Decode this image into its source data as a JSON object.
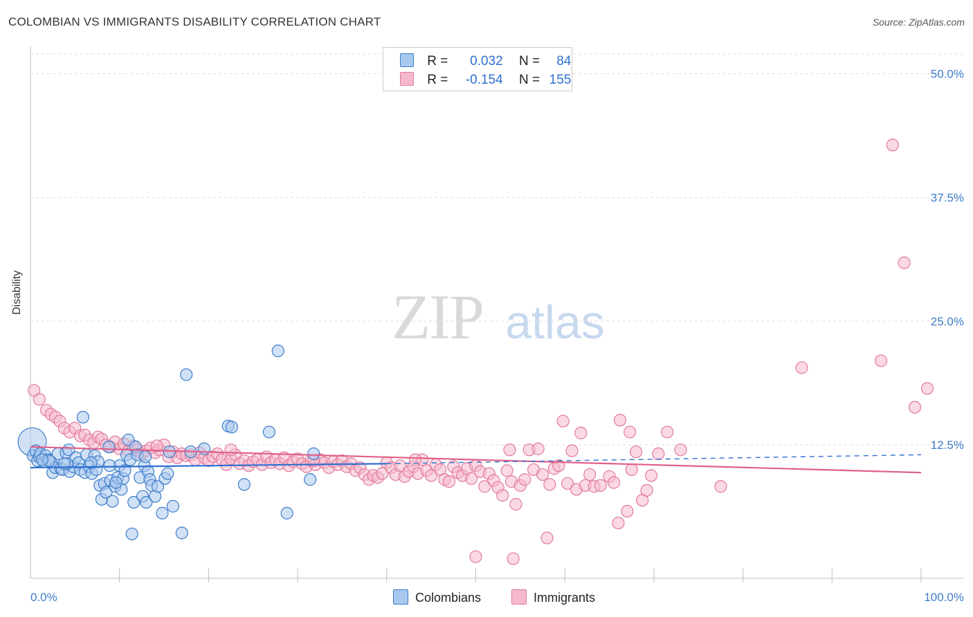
{
  "title": "COLOMBIAN VS IMMIGRANTS DISABILITY CORRELATION CHART",
  "source": "Source: ZipAtlas.com",
  "watermark": {
    "zip": "ZIP",
    "atlas": "atlas"
  },
  "legend": {
    "r_label": "R =",
    "n_label": "N =",
    "rows": [
      {
        "r": "0.032",
        "n": "84"
      },
      {
        "r": "-0.154",
        "n": "155"
      }
    ]
  },
  "colors": {
    "colombians_fill": "#a9c8ee",
    "colombians_stroke": "#3d7cc9",
    "colombians_line": "#2f6fd0",
    "immigrants_fill": "#f5b9cc",
    "immigrants_stroke": "#e07a9b",
    "immigrants_line": "#e0608a",
    "tick_label": "#3d7cc9",
    "grid": "#dddddd"
  },
  "chart_data": {
    "type": "scatter",
    "ylabel": "Disability",
    "xlabel": "",
    "x_tick_labels": [
      "0.0%",
      "100.0%"
    ],
    "y_tick_labels": [
      "12.5%",
      "25.0%",
      "37.5%",
      "50.0%"
    ],
    "y_ticks": [
      12.5,
      25.0,
      37.5,
      50.0
    ],
    "xlim": [
      0,
      100
    ],
    "ylim": [
      0,
      52
    ],
    "grid": true,
    "legend_position": "top-center",
    "series": [
      {
        "name": "Colombians",
        "r": 0.032,
        "n": 84,
        "trend": {
          "x": [
            0,
            40
          ],
          "y": [
            10.2,
            10.6
          ]
        },
        "trend_dashed": {
          "x": [
            40,
            100
          ],
          "y": [
            10.6,
            11.5
          ]
        },
        "points": [
          [
            0.2,
            12.8,
            2.4
          ],
          [
            0.3,
            11.4,
            1
          ],
          [
            0.6,
            11.9,
            1
          ],
          [
            0.8,
            10.9,
            1
          ],
          [
            1.0,
            11.3,
            1
          ],
          [
            1.1,
            11.6,
            1
          ],
          [
            1.5,
            10.8,
            1
          ],
          [
            1.7,
            11.4,
            1
          ],
          [
            2.0,
            11.0,
            1
          ],
          [
            2.3,
            10.8,
            1
          ],
          [
            2.5,
            9.7,
            1
          ],
          [
            2.8,
            10.2,
            1
          ],
          [
            3.1,
            11.6,
            1
          ],
          [
            3.4,
            10.1,
            1
          ],
          [
            3.6,
            10.0,
            1
          ],
          [
            4.0,
            11.7,
            1
          ],
          [
            4.3,
            12.0,
            1
          ],
          [
            4.4,
            9.8,
            1
          ],
          [
            4.8,
            10.3,
            1
          ],
          [
            5.1,
            11.2,
            1
          ],
          [
            5.4,
            10.7,
            1
          ],
          [
            5.6,
            10.0,
            1
          ],
          [
            5.9,
            15.3,
            1
          ],
          [
            6.1,
            9.7,
            1
          ],
          [
            6.3,
            11.5,
            1
          ],
          [
            6.6,
            10.3,
            1
          ],
          [
            6.9,
            9.6,
            1
          ],
          [
            7.2,
            11.4,
            1
          ],
          [
            7.4,
            10.0,
            1
          ],
          [
            7.6,
            10.8,
            1
          ],
          [
            7.8,
            8.4,
            1
          ],
          [
            8.0,
            7.0,
            1
          ],
          [
            8.3,
            8.6,
            1
          ],
          [
            8.5,
            7.7,
            1
          ],
          [
            8.8,
            12.3,
            1
          ],
          [
            9.0,
            8.9,
            1
          ],
          [
            9.2,
            6.8,
            1
          ],
          [
            9.5,
            8.3,
            1
          ],
          [
            9.8,
            9.2,
            1
          ],
          [
            10.0,
            10.4,
            1
          ],
          [
            10.2,
            8.0,
            1
          ],
          [
            10.4,
            9.1,
            1
          ],
          [
            10.6,
            9.9,
            1
          ],
          [
            10.8,
            11.5,
            1
          ],
          [
            11.0,
            13.0,
            1
          ],
          [
            11.2,
            11.0,
            1
          ],
          [
            11.4,
            3.5,
            1
          ],
          [
            11.6,
            6.7,
            1
          ],
          [
            11.8,
            12.3,
            1
          ],
          [
            12.0,
            11.5,
            1
          ],
          [
            12.3,
            9.2,
            1
          ],
          [
            12.6,
            7.3,
            1
          ],
          [
            12.8,
            10.4,
            1
          ],
          [
            13.0,
            6.7,
            1
          ],
          [
            13.2,
            9.8,
            1
          ],
          [
            13.4,
            9.0,
            1
          ],
          [
            13.6,
            8.4,
            1
          ],
          [
            14.0,
            7.3,
            1
          ],
          [
            14.3,
            8.3,
            1
          ],
          [
            14.8,
            5.6,
            1
          ],
          [
            15.1,
            9.1,
            1
          ],
          [
            15.4,
            9.6,
            1
          ],
          [
            15.6,
            11.8,
            1
          ],
          [
            16.0,
            6.3,
            1
          ],
          [
            17.0,
            3.6,
            1
          ],
          [
            17.5,
            19.6,
            1
          ],
          [
            18.0,
            11.8,
            1
          ],
          [
            19.5,
            12.1,
            1
          ],
          [
            22.2,
            14.4,
            1
          ],
          [
            22.6,
            14.3,
            1
          ],
          [
            24.0,
            8.5,
            1
          ],
          [
            26.8,
            13.8,
            1
          ],
          [
            27.8,
            22.0,
            1
          ],
          [
            28.8,
            5.6,
            1
          ],
          [
            31.8,
            11.6,
            1
          ],
          [
            31.4,
            9.0,
            1
          ],
          [
            9.6,
            8.7,
            1
          ],
          [
            4.1,
            10.6,
            1
          ],
          [
            2.1,
            10.9,
            1
          ],
          [
            3.8,
            10.6,
            1
          ],
          [
            6.8,
            10.7,
            1
          ],
          [
            1.3,
            11.0,
            1
          ],
          [
            12.9,
            11.3,
            1
          ],
          [
            8.9,
            10.4,
            1
          ]
        ]
      },
      {
        "name": "Immigrants",
        "r": -0.154,
        "n": 155,
        "trend": {
          "x": [
            0,
            100
          ],
          "y": [
            12.3,
            9.7
          ]
        },
        "points": [
          [
            0.4,
            18.0,
            1
          ],
          [
            1.0,
            17.1,
            1
          ],
          [
            1.8,
            16.0,
            1
          ],
          [
            2.3,
            15.6,
            1
          ],
          [
            2.8,
            15.3,
            1
          ],
          [
            3.3,
            14.9,
            1
          ],
          [
            3.8,
            14.2,
            1
          ],
          [
            4.4,
            13.8,
            1
          ],
          [
            5.0,
            14.2,
            1
          ],
          [
            5.6,
            13.4,
            1
          ],
          [
            6.1,
            13.5,
            1
          ],
          [
            6.6,
            13.0,
            1
          ],
          [
            7.1,
            12.7,
            1
          ],
          [
            7.6,
            13.3,
            1
          ],
          [
            8.0,
            13.1,
            1
          ],
          [
            8.5,
            12.5,
            1
          ],
          [
            9.0,
            12.3,
            1
          ],
          [
            9.5,
            12.8,
            1
          ],
          [
            10.0,
            12.1,
            1
          ],
          [
            10.5,
            12.6,
            1
          ],
          [
            11.0,
            11.9,
            1
          ],
          [
            11.5,
            12.4,
            1
          ],
          [
            12.0,
            12.0,
            1
          ],
          [
            12.5,
            11.6,
            1
          ],
          [
            13.0,
            11.9,
            1
          ],
          [
            13.5,
            12.2,
            1
          ],
          [
            14.0,
            11.7,
            1
          ],
          [
            14.5,
            12.0,
            1
          ],
          [
            15.0,
            12.5,
            1
          ],
          [
            15.5,
            11.3,
            1
          ],
          [
            16.0,
            11.8,
            1
          ],
          [
            16.5,
            11.2,
            1
          ],
          [
            17.0,
            11.6,
            1
          ],
          [
            17.5,
            11.4,
            1
          ],
          [
            18.0,
            11.5,
            1
          ],
          [
            18.5,
            11.0,
            1
          ],
          [
            19.0,
            11.7,
            1
          ],
          [
            19.5,
            11.2,
            1
          ],
          [
            20.0,
            10.9,
            1
          ],
          [
            20.5,
            11.3,
            1
          ],
          [
            21.0,
            11.6,
            1
          ],
          [
            21.5,
            11.0,
            1
          ],
          [
            22.0,
            10.5,
            1
          ],
          [
            22.5,
            11.1,
            1
          ],
          [
            23.0,
            11.5,
            1
          ],
          [
            23.5,
            10.6,
            1
          ],
          [
            24.0,
            10.9,
            1
          ],
          [
            24.5,
            10.4,
            1
          ],
          [
            25.0,
            10.8,
            1
          ],
          [
            25.5,
            11.0,
            1
          ],
          [
            26.0,
            10.5,
            1
          ],
          [
            26.5,
            11.3,
            1
          ],
          [
            27.0,
            10.7,
            1
          ],
          [
            27.5,
            11.0,
            1
          ],
          [
            28.0,
            10.6,
            1
          ],
          [
            28.5,
            11.2,
            1
          ],
          [
            29.0,
            10.4,
            1
          ],
          [
            29.5,
            10.8,
            1
          ],
          [
            30.0,
            11.1,
            1
          ],
          [
            30.5,
            10.6,
            1
          ],
          [
            31.0,
            10.3,
            1
          ],
          [
            31.5,
            10.9,
            1
          ],
          [
            32.0,
            10.5,
            1
          ],
          [
            32.5,
            11.0,
            1
          ],
          [
            33.0,
            10.7,
            1
          ],
          [
            33.5,
            10.2,
            1
          ],
          [
            34.0,
            10.8,
            1
          ],
          [
            34.5,
            10.5,
            1
          ],
          [
            35.0,
            10.9,
            1
          ],
          [
            35.5,
            10.3,
            1
          ],
          [
            36.0,
            10.6,
            1
          ],
          [
            36.5,
            9.9,
            1
          ],
          [
            37.0,
            10.2,
            1
          ],
          [
            37.5,
            9.5,
            1
          ],
          [
            38.0,
            9.0,
            1
          ],
          [
            38.5,
            9.4,
            1
          ],
          [
            39.0,
            9.2,
            1
          ],
          [
            39.5,
            9.6,
            1
          ],
          [
            40.0,
            10.7,
            1
          ],
          [
            40.5,
            10.2,
            1
          ],
          [
            41.0,
            9.5,
            1
          ],
          [
            41.5,
            10.4,
            1
          ],
          [
            42.0,
            9.3,
            1
          ],
          [
            42.5,
            9.8,
            1
          ],
          [
            43.0,
            10.3,
            1
          ],
          [
            43.5,
            9.6,
            1
          ],
          [
            44.0,
            11.0,
            1
          ],
          [
            44.5,
            9.9,
            1
          ],
          [
            45.0,
            9.4,
            1
          ],
          [
            45.5,
            10.5,
            1
          ],
          [
            46.0,
            10.0,
            1
          ],
          [
            46.5,
            9.0,
            1
          ],
          [
            47.0,
            8.8,
            1
          ],
          [
            47.5,
            10.3,
            1
          ],
          [
            48.0,
            9.7,
            1
          ],
          [
            48.5,
            9.4,
            1
          ],
          [
            49.0,
            10.1,
            1
          ],
          [
            49.5,
            9.1,
            1
          ],
          [
            50.0,
            10.4,
            1
          ],
          [
            50.5,
            9.8,
            1
          ],
          [
            51.0,
            8.3,
            1
          ],
          [
            51.5,
            9.6,
            1
          ],
          [
            52.0,
            8.9,
            1
          ],
          [
            52.5,
            8.2,
            1
          ],
          [
            53.0,
            7.4,
            1
          ],
          [
            53.5,
            9.9,
            1
          ],
          [
            54.0,
            8.8,
            1
          ],
          [
            54.5,
            6.5,
            1
          ],
          [
            55.0,
            8.4,
            1
          ],
          [
            55.5,
            9.0,
            1
          ],
          [
            56.0,
            12.0,
            1
          ],
          [
            56.5,
            10.0,
            1
          ],
          [
            57.0,
            12.1,
            1
          ],
          [
            57.5,
            9.5,
            1
          ],
          [
            58.0,
            3.1,
            1
          ],
          [
            58.3,
            8.5,
            1
          ],
          [
            58.8,
            10.1,
            1
          ],
          [
            59.3,
            10.4,
            1
          ],
          [
            59.8,
            14.9,
            1
          ],
          [
            60.3,
            8.6,
            1
          ],
          [
            60.8,
            11.9,
            1
          ],
          [
            61.3,
            8.0,
            1
          ],
          [
            61.8,
            13.7,
            1
          ],
          [
            62.3,
            8.4,
            1
          ],
          [
            62.8,
            9.5,
            1
          ],
          [
            63.3,
            8.3,
            1
          ],
          [
            64.0,
            8.4,
            1
          ],
          [
            65.0,
            9.3,
            1
          ],
          [
            65.5,
            8.7,
            1
          ],
          [
            66.0,
            4.6,
            1
          ],
          [
            67.0,
            5.8,
            1
          ],
          [
            67.5,
            10.0,
            1
          ],
          [
            68.0,
            11.8,
            1
          ],
          [
            68.7,
            6.9,
            1
          ],
          [
            69.2,
            7.9,
            1
          ],
          [
            69.7,
            9.4,
            1
          ],
          [
            70.5,
            11.6,
            1
          ],
          [
            71.5,
            13.8,
            1
          ],
          [
            73.0,
            12.0,
            1
          ],
          [
            77.5,
            8.3,
            1
          ],
          [
            86.6,
            20.3,
            1
          ],
          [
            95.5,
            21.0,
            1
          ],
          [
            96.8,
            42.8,
            1
          ],
          [
            98.1,
            30.9,
            1
          ],
          [
            99.3,
            16.3,
            1
          ],
          [
            100.7,
            18.2,
            1
          ],
          [
            66.2,
            15.0,
            1
          ],
          [
            67.3,
            13.8,
            1
          ],
          [
            50.0,
            1.2,
            1
          ],
          [
            54.2,
            1.0,
            1
          ],
          [
            53.8,
            12.0,
            1
          ],
          [
            22.5,
            12.0,
            1
          ],
          [
            31.8,
            10.9,
            1
          ],
          [
            14.2,
            12.4,
            1
          ],
          [
            43.2,
            11.0,
            1
          ]
        ]
      }
    ]
  },
  "bottom_legend": [
    {
      "label": "Colombians"
    },
    {
      "label": "Immigrants"
    }
  ]
}
